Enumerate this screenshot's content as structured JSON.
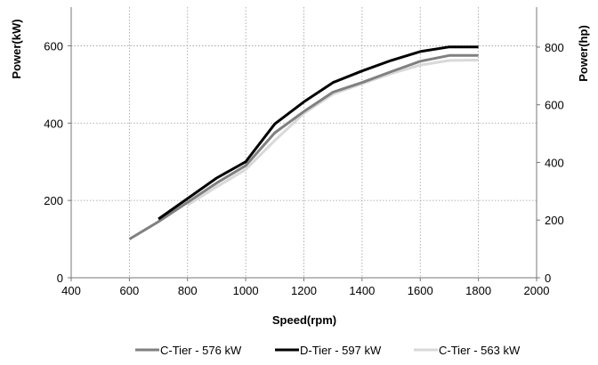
{
  "chart_data": {
    "type": "line",
    "xlabel": "Speed(rpm)",
    "ylabel": "Power(kW)",
    "y2label": "Power(hp)",
    "xlim": [
      400,
      2000
    ],
    "ylim": [
      0,
      700
    ],
    "y2lim": [
      0,
      938.7
    ],
    "x_ticks": [
      "400",
      "600",
      "800",
      "1000",
      "1200",
      "1400",
      "1600",
      "1800",
      "2000"
    ],
    "y_ticks": [
      "0",
      "200",
      "400",
      "600"
    ],
    "y2_ticks": [
      "0",
      "200",
      "400",
      "600",
      "800"
    ],
    "grid": true,
    "legend_position": "bottom",
    "series": [
      {
        "name": "C-Tier - 576 kW",
        "color": "#808080",
        "x": [
          600,
          700,
          800,
          900,
          1000,
          1100,
          1200,
          1300,
          1400,
          1500,
          1600,
          1700,
          1800
        ],
        "y": [
          100,
          145,
          195,
          245,
          290,
          375,
          430,
          480,
          505,
          533,
          560,
          575,
          575
        ]
      },
      {
        "name": "D-Tier - 597 kW",
        "color": "#000000",
        "x": [
          700,
          800,
          900,
          1000,
          1100,
          1200,
          1300,
          1400,
          1500,
          1600,
          1700,
          1800
        ],
        "y": [
          152,
          205,
          258,
          300,
          398,
          455,
          505,
          535,
          562,
          585,
          597,
          597
        ]
      },
      {
        "name": "C-Tier - 563 kW",
        "color": "#d9d9d9",
        "x": [
          800,
          900,
          1000,
          1100,
          1200,
          1300,
          1400,
          1500,
          1600,
          1700,
          1800
        ],
        "y": [
          188,
          235,
          280,
          355,
          425,
          475,
          502,
          528,
          550,
          562,
          563
        ]
      }
    ]
  }
}
